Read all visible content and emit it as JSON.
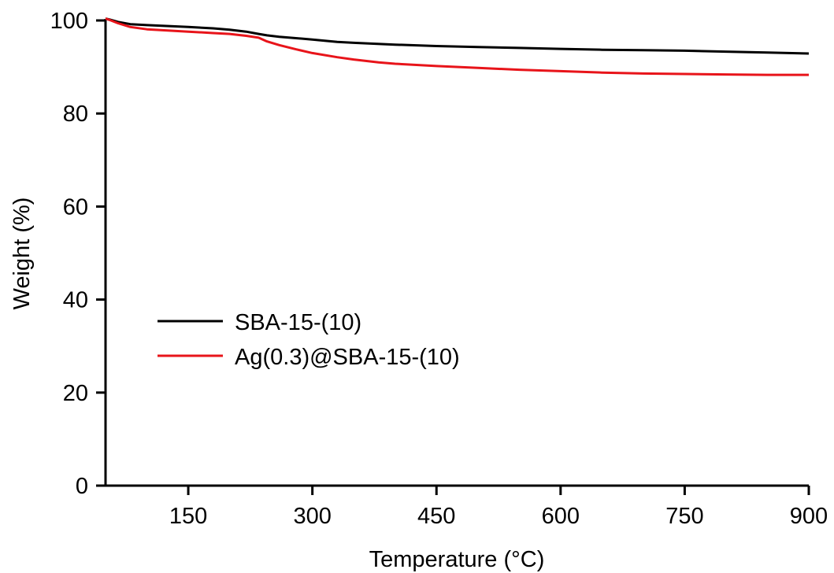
{
  "chart_data": {
    "type": "line",
    "title": "",
    "xlabel": "Temperature (°C)",
    "ylabel": "Weight (%)",
    "xlim": [
      50,
      900
    ],
    "ylim": [
      0,
      100
    ],
    "xticks": [
      150,
      300,
      450,
      600,
      750,
      900
    ],
    "yticks": [
      0,
      20,
      40,
      60,
      80,
      100
    ],
    "grid": false,
    "legend_position": "center-left",
    "series": [
      {
        "name": "SBA-15-(10)",
        "color": "#000000",
        "x": [
          50,
          55,
          65,
          80,
          100,
          150,
          180,
          200,
          220,
          235,
          245,
          260,
          300,
          330,
          350,
          400,
          450,
          500,
          550,
          600,
          650,
          700,
          750,
          800,
          850,
          900
        ],
        "y": [
          100.4,
          100.2,
          99.7,
          99.2,
          99.0,
          98.6,
          98.3,
          98.0,
          97.6,
          97.1,
          96.8,
          96.5,
          95.9,
          95.4,
          95.2,
          94.8,
          94.5,
          94.3,
          94.1,
          93.9,
          93.7,
          93.6,
          93.5,
          93.3,
          93.1,
          92.9
        ]
      },
      {
        "name": "Ag(0.3)@SBA-15-(10)",
        "color": "#e8141a",
        "x": [
          50,
          55,
          65,
          80,
          100,
          150,
          180,
          200,
          220,
          235,
          245,
          260,
          280,
          300,
          330,
          350,
          380,
          400,
          450,
          500,
          550,
          600,
          650,
          700,
          750,
          800,
          850,
          900
        ],
        "y": [
          100.4,
          100.1,
          99.4,
          98.6,
          98.1,
          97.6,
          97.3,
          97.1,
          96.7,
          96.3,
          95.5,
          94.7,
          93.8,
          93.0,
          92.1,
          91.6,
          91.0,
          90.7,
          90.2,
          89.8,
          89.4,
          89.1,
          88.8,
          88.6,
          88.5,
          88.4,
          88.3,
          88.3
        ]
      }
    ]
  }
}
